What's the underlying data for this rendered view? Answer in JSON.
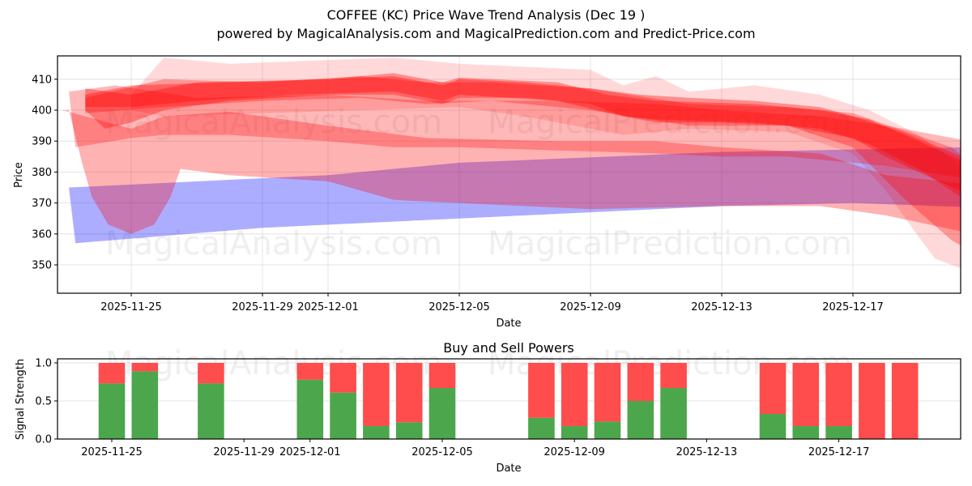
{
  "header": {
    "title": "COFFEE (KC) Price Wave Trend Analysis (Dec 19 )",
    "subtitle": "powered by MagicalAnalysis.com and MagicalPrediction.com and Predict-Price.com"
  },
  "watermarks": [
    "MagicalAnalysis.com",
    "MagicalPrediction.com"
  ],
  "colors": {
    "bullish_wave": "#ff0000",
    "bearish_wave": "#0000ff",
    "buy": "#4ca64c",
    "sell": "#ff4c4c",
    "grid": "#dddddd"
  },
  "chart_data": [
    {
      "type": "area",
      "title": "COFFEE (KC) Price Wave Trend Analysis (Dec 19 )",
      "xlabel": "Date",
      "ylabel": "Price",
      "ylim": [
        340.8,
        417.6
      ],
      "xlim": [
        "2025-11-22",
        "2025-12-20"
      ],
      "grid": true,
      "x_ticks": [
        "2025-11-25",
        "2025-11-29",
        "2025-12-01",
        "2025-12-05",
        "2025-12-09",
        "2025-12-13",
        "2025-12-17"
      ],
      "y_ticks": [
        350,
        360,
        370,
        380,
        390,
        400,
        410
      ],
      "x_tick_day_offsets": [
        0,
        4,
        6,
        10,
        14,
        18,
        22
      ],
      "day0": "2025-11-25",
      "bands": [
        {
          "name": "bearish-wave-blue",
          "color": "#0000ff",
          "opacity": 0.32,
          "upper": [
            [
              -1.9,
              375
            ],
            [
              6,
              379
            ],
            [
              10,
              383
            ],
            [
              18,
              386.5
            ],
            [
              25.5,
              388
            ],
            [
              27.5,
              386
            ]
          ],
          "lower": [
            [
              27.2,
              368
            ],
            [
              22,
              370
            ],
            [
              18,
              369
            ],
            [
              10,
              365
            ],
            [
              4,
              362
            ],
            [
              -1.7,
              357
            ]
          ]
        },
        {
          "name": "wide-wave-pink",
          "color": "#ff0000",
          "opacity": 0.3,
          "upper": [
            [
              -2.1,
              400
            ],
            [
              0,
              394
            ],
            [
              1,
              398
            ],
            [
              3,
              399.5
            ],
            [
              6,
              395
            ],
            [
              9,
              391
            ],
            [
              13,
              390
            ],
            [
              16,
              390
            ],
            [
              18,
              388
            ],
            [
              21,
              386
            ],
            [
              23,
              379
            ],
            [
              27.4,
              374
            ]
          ],
          "lower": [
            [
              27.0,
              357
            ],
            [
              23,
              366
            ],
            [
              21,
              369
            ],
            [
              18,
              369
            ],
            [
              14,
              368
            ],
            [
              10,
              370
            ],
            [
              8,
              371
            ],
            [
              6,
              377
            ],
            [
              3,
              379
            ],
            [
              1.5,
              381
            ],
            [
              1.2,
              372
            ],
            [
              0.7,
              363
            ],
            [
              0,
              360
            ],
            [
              -0.7,
              363
            ],
            [
              -1.2,
              372
            ],
            [
              -1.5,
              383
            ],
            [
              -1.9,
              400
            ]
          ]
        },
        {
          "name": "mid-wave-pink",
          "color": "#ff0000",
          "opacity": 0.28,
          "upper": [
            [
              -1.9,
              406
            ],
            [
              -0.5,
              408
            ],
            [
              2,
              404
            ],
            [
              6,
              405
            ],
            [
              9,
              403
            ],
            [
              13,
              403
            ],
            [
              16,
              402
            ],
            [
              18,
              400
            ],
            [
              21,
              398
            ],
            [
              23,
              395
            ],
            [
              27.6,
              386
            ]
          ],
          "lower": [
            [
              27.2,
              375
            ],
            [
              23,
              382
            ],
            [
              20,
              385
            ],
            [
              18,
              385
            ],
            [
              16,
              386
            ],
            [
              13,
              387
            ],
            [
              10,
              388
            ],
            [
              8,
              388
            ],
            [
              6,
              390
            ],
            [
              3,
              392
            ],
            [
              1,
              392
            ],
            [
              0,
              391
            ],
            [
              -1.7,
              388
            ]
          ]
        },
        {
          "name": "core-wave-red-1",
          "color": "#ff0000",
          "opacity": 0.35,
          "upper": [
            [
              -1.4,
              407
            ],
            [
              0,
              405
            ],
            [
              2,
              409
            ],
            [
              6,
              410
            ],
            [
              8,
              411
            ],
            [
              9.5,
              408
            ],
            [
              10,
              410
            ],
            [
              12,
              409
            ],
            [
              14,
              407
            ],
            [
              15.5,
              405
            ],
            [
              17,
              404
            ],
            [
              19,
              403
            ],
            [
              21,
              401
            ],
            [
              22,
              398
            ],
            [
              23.5,
              393
            ],
            [
              26,
              382
            ],
            [
              27,
              378
            ]
          ],
          "lower": [
            [
              26.5,
              368
            ],
            [
              24,
              380
            ],
            [
              23,
              385
            ],
            [
              22,
              391
            ],
            [
              20,
              395
            ],
            [
              18,
              396
            ],
            [
              16,
              396
            ],
            [
              15,
              398
            ],
            [
              14,
              402
            ],
            [
              12,
              404
            ],
            [
              10,
              404
            ],
            [
              9.5,
              402
            ],
            [
              8,
              405
            ],
            [
              6,
              405
            ],
            [
              3,
              403
            ],
            [
              1,
              400
            ],
            [
              0,
              396
            ],
            [
              -0.8,
              394
            ],
            [
              -1.4,
              400
            ]
          ]
        },
        {
          "name": "core-wave-red-2",
          "color": "#ff0000",
          "opacity": 0.35,
          "upper": [
            [
              -1.4,
              405
            ],
            [
              0,
              408
            ],
            [
              3,
              409
            ],
            [
              6,
              410
            ],
            [
              8,
              412
            ],
            [
              9.5,
              409
            ],
            [
              10,
              410.5
            ],
            [
              13,
              409
            ],
            [
              14.5,
              405
            ],
            [
              16,
              403
            ],
            [
              19,
              402
            ],
            [
              21,
              400
            ],
            [
              22.5,
              397
            ],
            [
              24,
              390
            ],
            [
              26.5,
              378
            ]
          ],
          "lower": [
            [
              26,
              367
            ],
            [
              24,
              381
            ],
            [
              22.5,
              389
            ],
            [
              21,
              394
            ],
            [
              19,
              396
            ],
            [
              16,
              397
            ],
            [
              15,
              398
            ],
            [
              13,
              403
            ],
            [
              10,
              405
            ],
            [
              9.5,
              403
            ],
            [
              8,
              406
            ],
            [
              5,
              405
            ],
            [
              2,
              403
            ],
            [
              0,
              401
            ],
            [
              -1.4,
              401
            ]
          ]
        },
        {
          "name": "core-wave-red-3",
          "color": "#ff0000",
          "opacity": 0.3,
          "upper": [
            [
              -1.4,
              404
            ],
            [
              1,
              410
            ],
            [
              4,
              409
            ],
            [
              7,
              411
            ],
            [
              9,
              409
            ],
            [
              11,
              409
            ],
            [
              14,
              407
            ],
            [
              17,
              402
            ],
            [
              20,
              401
            ],
            [
              22,
              399
            ],
            [
              25,
              388
            ],
            [
              27,
              372
            ]
          ],
          "lower": [
            [
              26.8,
              347
            ],
            [
              25,
              358
            ],
            [
              23.5,
              372
            ],
            [
              22,
              388
            ],
            [
              20,
              395
            ],
            [
              17,
              395
            ],
            [
              14,
              400
            ],
            [
              11,
              403
            ],
            [
              9,
              402
            ],
            [
              7,
              404
            ],
            [
              4,
              403
            ],
            [
              1,
              401
            ],
            [
              -1.4,
              399
            ]
          ]
        },
        {
          "name": "fading-wave-light",
          "color": "#ff0000",
          "opacity": 0.15,
          "upper": [
            [
              0,
              405
            ],
            [
              1,
              417
            ],
            [
              3,
              415
            ],
            [
              8,
              417
            ],
            [
              10,
              415
            ],
            [
              14,
              413
            ],
            [
              15,
              408
            ],
            [
              16,
              411
            ],
            [
              17,
              406
            ],
            [
              19,
              408
            ],
            [
              21,
              405
            ],
            [
              22.5,
              400
            ],
            [
              24,
              392
            ],
            [
              26.5,
              373
            ]
          ],
          "lower": [
            [
              26.5,
              343
            ],
            [
              25.5,
              348
            ],
            [
              24.5,
              352
            ],
            [
              23.8,
              362
            ],
            [
              23,
              374
            ],
            [
              22,
              386
            ],
            [
              20,
              393
            ],
            [
              17,
              394
            ],
            [
              15,
              392
            ],
            [
              12,
              398
            ],
            [
              10,
              401
            ],
            [
              7,
              400
            ],
            [
              4,
              399
            ],
            [
              1,
              398
            ],
            [
              0,
              400
            ]
          ]
        }
      ]
    },
    {
      "type": "bar",
      "title": "Buy and Sell Powers",
      "xlabel": "Date",
      "ylabel": "Signal Strength",
      "ylim": [
        0,
        1.05
      ],
      "y_ticks": [
        "0.0",
        "0.5",
        "1.0"
      ],
      "x_ticks": [
        "2025-11-25",
        "2025-11-29",
        "2025-12-01",
        "2025-12-05",
        "2025-12-09",
        "2025-12-13",
        "2025-12-17"
      ],
      "x_tick_day_offsets": [
        0,
        4,
        6,
        10,
        14,
        18,
        22
      ],
      "day0": "2025-11-25",
      "categories": [
        "2025-11-25",
        "2025-11-26",
        "2025-11-28",
        "2025-12-01",
        "2025-12-02",
        "2025-12-03",
        "2025-12-04",
        "2025-12-05",
        "2025-12-08",
        "2025-12-09",
        "2025-12-10",
        "2025-12-11",
        "2025-12-12",
        "2025-12-15",
        "2025-12-16",
        "2025-12-17",
        "2025-12-18",
        "2025-12-19"
      ],
      "day_offsets": [
        0,
        1,
        3,
        6,
        7,
        8,
        9,
        10,
        13,
        14,
        15,
        16,
        17,
        20,
        21,
        22,
        23,
        24
      ],
      "series": [
        {
          "name": "Buy",
          "color": "#4ca64c",
          "values": [
            0.73,
            0.89,
            0.73,
            0.78,
            0.61,
            0.17,
            0.22,
            0.67,
            0.28,
            0.17,
            0.23,
            0.5,
            0.67,
            0.33,
            0.17,
            0.17,
            0.0,
            0.0
          ]
        },
        {
          "name": "Sell",
          "color": "#ff4c4c",
          "values": [
            0.27,
            0.11,
            0.27,
            0.22,
            0.39,
            0.83,
            0.78,
            0.33,
            0.72,
            0.83,
            0.77,
            0.5,
            0.33,
            0.67,
            0.83,
            0.83,
            1.0,
            1.0
          ]
        }
      ]
    }
  ]
}
